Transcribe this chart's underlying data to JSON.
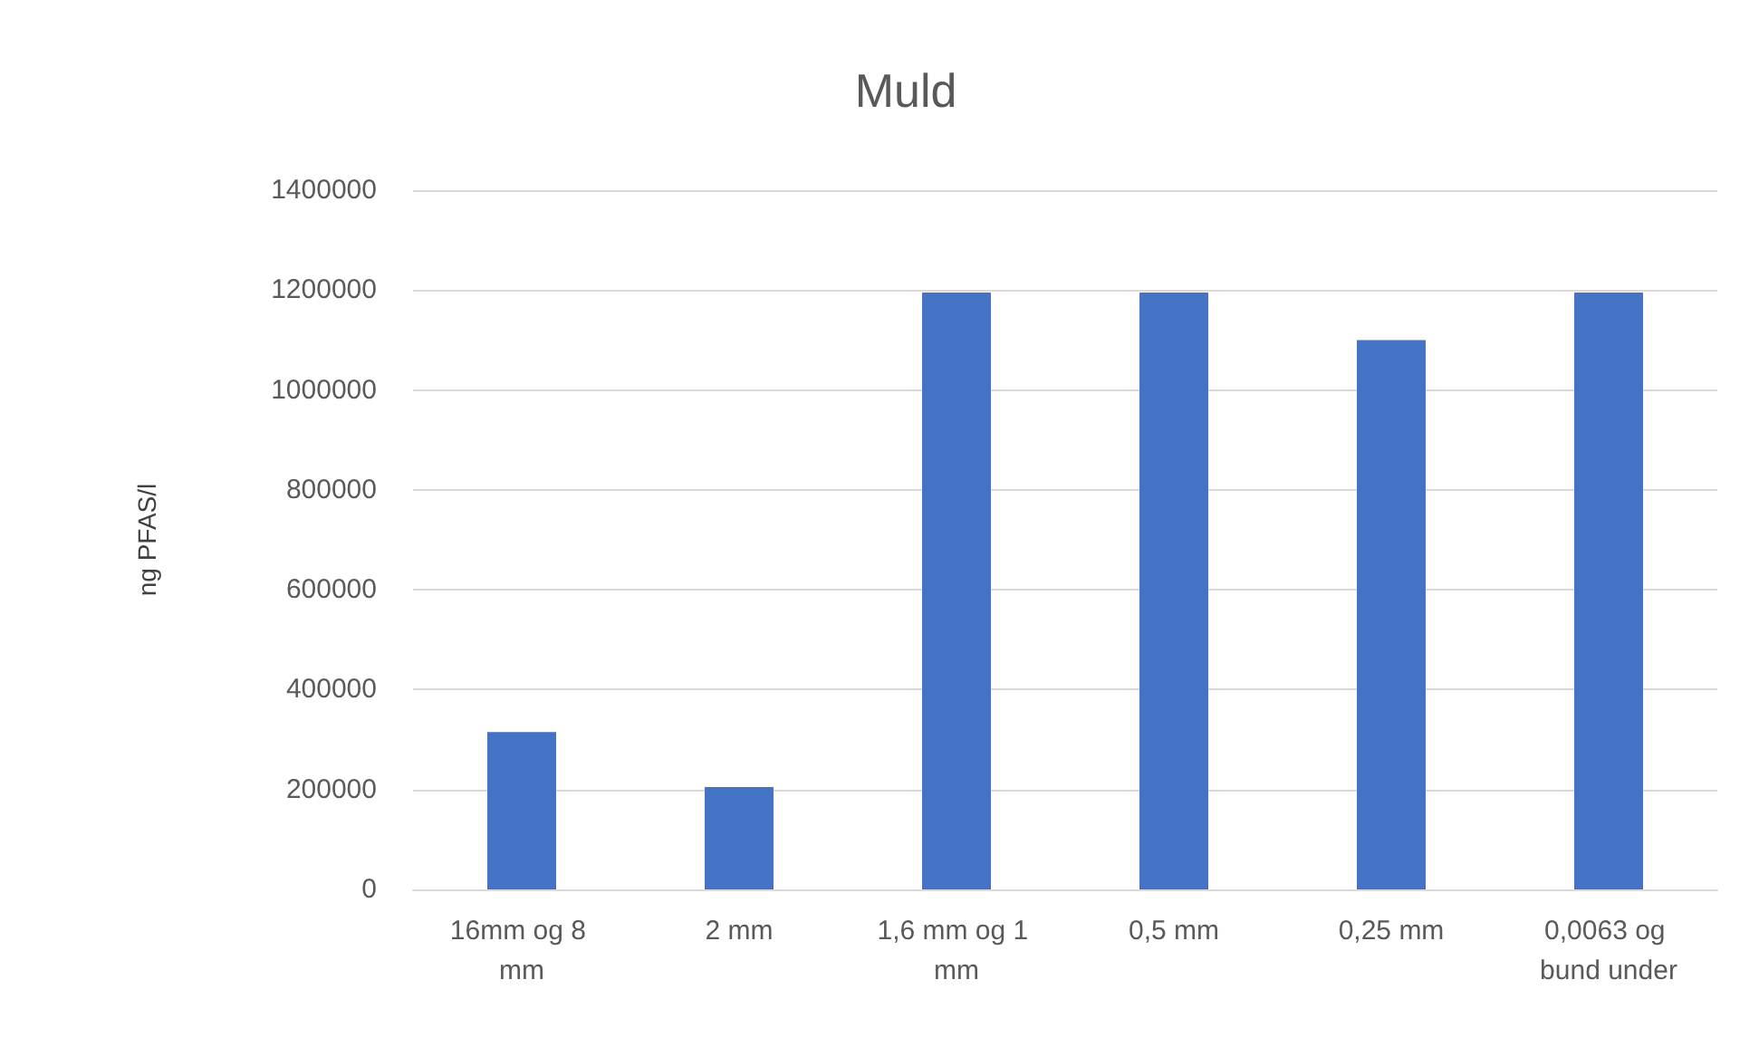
{
  "chart_data": {
    "type": "bar",
    "title": "Muld",
    "ylabel": "ng PFAS/l",
    "categories": [
      "16mm og 8 mm",
      "2 mm",
      "1,6 mm og 1 mm",
      "0,5 mm",
      "0,25 mm",
      "0,0063 og bund under"
    ],
    "values": [
      315000,
      205000,
      1195000,
      1195000,
      1100000,
      1195000
    ],
    "color": "#4472c4",
    "ylim": [
      0,
      1400000
    ],
    "yticks": [
      0,
      200000,
      400000,
      600000,
      800000,
      1000000,
      1200000,
      1400000
    ],
    "grid": "y"
  }
}
